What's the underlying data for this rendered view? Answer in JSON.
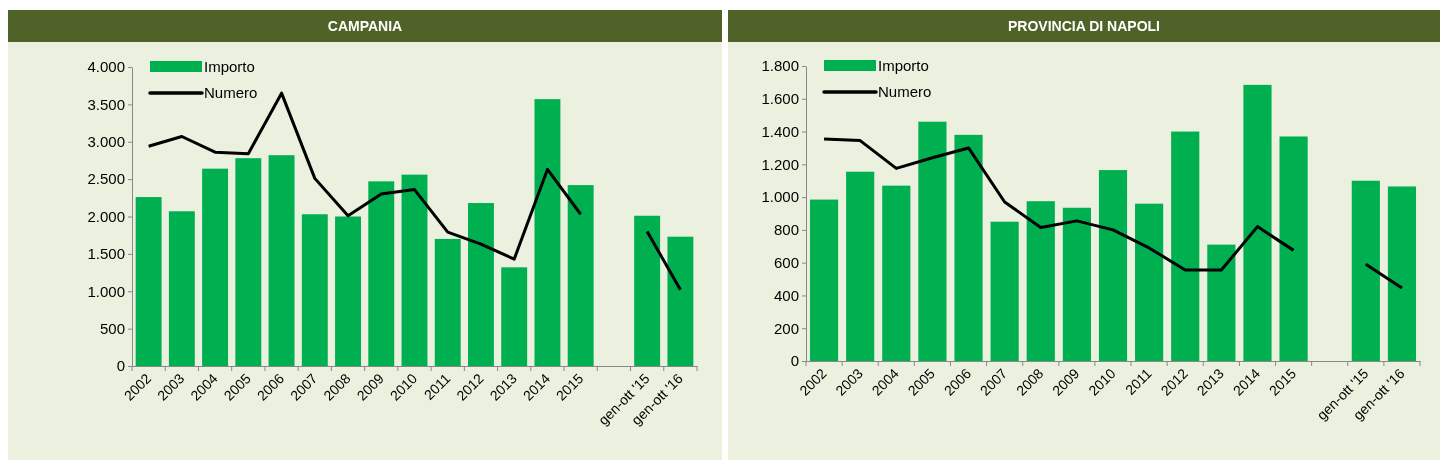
{
  "chart_data": [
    {
      "type": "bar",
      "title": "CAMPANIA",
      "categories": [
        "2002",
        "2003",
        "2004",
        "2005",
        "2006",
        "2007",
        "2008",
        "2009",
        "2010",
        "2011",
        "2012",
        "2013",
        "2014",
        "2015",
        null,
        "gen-ott '15",
        "gen-ott '16"
      ],
      "series": [
        {
          "name": "Importo",
          "color": "#00b050",
          "values": [
            2260,
            2070,
            2640,
            2780,
            2820,
            2030,
            2000,
            2470,
            2560,
            1700,
            2180,
            1320,
            3570,
            2420,
            null,
            2010,
            1730
          ]
        },
        {
          "name": "Numero",
          "type": "line",
          "color": "#000000",
          "values": [
            2940,
            3070,
            2860,
            2840,
            3650,
            2510,
            2010,
            2300,
            2360,
            1790,
            1630,
            1430,
            2630,
            2030,
            null,
            1800,
            1020
          ]
        }
      ],
      "ylim": [
        0,
        4000
      ],
      "yticks": [
        {
          "value": 0,
          "label": "0"
        },
        {
          "value": 500,
          "label": "500"
        },
        {
          "value": 1000,
          "label": "1.000"
        },
        {
          "value": 1500,
          "label": "1.500"
        },
        {
          "value": 2000,
          "label": "2.000"
        },
        {
          "value": 2500,
          "label": "2.500"
        },
        {
          "value": 3000,
          "label": "3.000"
        },
        {
          "value": 3500,
          "label": "3.500"
        },
        {
          "value": 4000,
          "label": "4.000"
        }
      ],
      "legend": "top left",
      "grid": false,
      "marker": "none",
      "line_style": "solid"
    },
    {
      "type": "bar",
      "title": "PROVINCIA DI NAPOLI",
      "categories": [
        "2002",
        "2003",
        "2004",
        "2005",
        "2006",
        "2007",
        "2008",
        "2009",
        "2010",
        "2011",
        "2012",
        "2013",
        "2014",
        "2015",
        null,
        "gen-ott '15",
        "gen-ott '16"
      ],
      "series": [
        {
          "name": "Importo",
          "color": "#00b050",
          "values": [
            985,
            1155,
            1070,
            1460,
            1380,
            850,
            975,
            935,
            1165,
            960,
            1400,
            710,
            1685,
            1370,
            null,
            1100,
            1065
          ]
        },
        {
          "name": "Numero",
          "type": "line",
          "color": "#000000",
          "values": [
            1355,
            1345,
            1175,
            1240,
            1300,
            970,
            815,
            855,
            800,
            690,
            555,
            555,
            820,
            675,
            null,
            590,
            445
          ]
        }
      ],
      "ylim": [
        0,
        1800
      ],
      "yticks": [
        {
          "value": 0,
          "label": "0"
        },
        {
          "value": 200,
          "label": "200"
        },
        {
          "value": 400,
          "label": "400"
        },
        {
          "value": 600,
          "label": "600"
        },
        {
          "value": 800,
          "label": "800"
        },
        {
          "value": 1000,
          "label": "1.000"
        },
        {
          "value": 1200,
          "label": "1.200"
        },
        {
          "value": 1400,
          "label": "1.400"
        },
        {
          "value": 1600,
          "label": "1.600"
        },
        {
          "value": 1800,
          "label": "1.800"
        }
      ],
      "legend": "top left",
      "grid": false,
      "marker": "none",
      "line_style": "solid"
    }
  ]
}
